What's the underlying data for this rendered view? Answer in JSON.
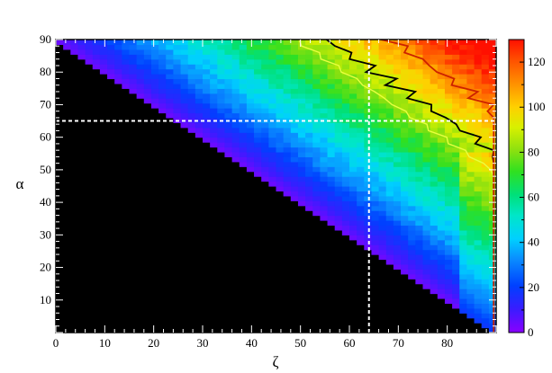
{
  "chart_data": {
    "type": "heatmap",
    "xlabel": "ζ",
    "ylabel": "α",
    "xlim": [
      0,
      90
    ],
    "ylim": [
      0,
      90
    ],
    "x_ticks": [
      0,
      10,
      20,
      30,
      40,
      50,
      60,
      70,
      80
    ],
    "y_ticks": [
      10,
      20,
      30,
      40,
      50,
      60,
      70,
      80,
      90
    ],
    "colorbar": {
      "range": [
        0,
        130
      ],
      "ticks": [
        0,
        20,
        40,
        60,
        80,
        100,
        120
      ],
      "colors": [
        "#8a00ff",
        "#3a1cff",
        "#0040ff",
        "#0a8cff",
        "#00d0ff",
        "#00e6c8",
        "#00e07a",
        "#30e020",
        "#8ae010",
        "#d8f000",
        "#ffd000",
        "#ff9000",
        "#ff5000",
        "#ff1000"
      ]
    },
    "masked_region": "α + ζ < 90 (black)",
    "reference_lines": [
      {
        "orientation": "vertical",
        "x": 64,
        "style": "dashed",
        "color": "#ffffff"
      },
      {
        "orientation": "horizontal",
        "y": 65,
        "style": "dashed",
        "color": "#ffffff"
      }
    ],
    "contours": [
      {
        "level": 80,
        "color": "#e8ff40"
      },
      {
        "level": 90,
        "color": "#000000"
      },
      {
        "level": 110,
        "color": "#cc2200"
      }
    ],
    "grid": false,
    "legend": "none"
  }
}
